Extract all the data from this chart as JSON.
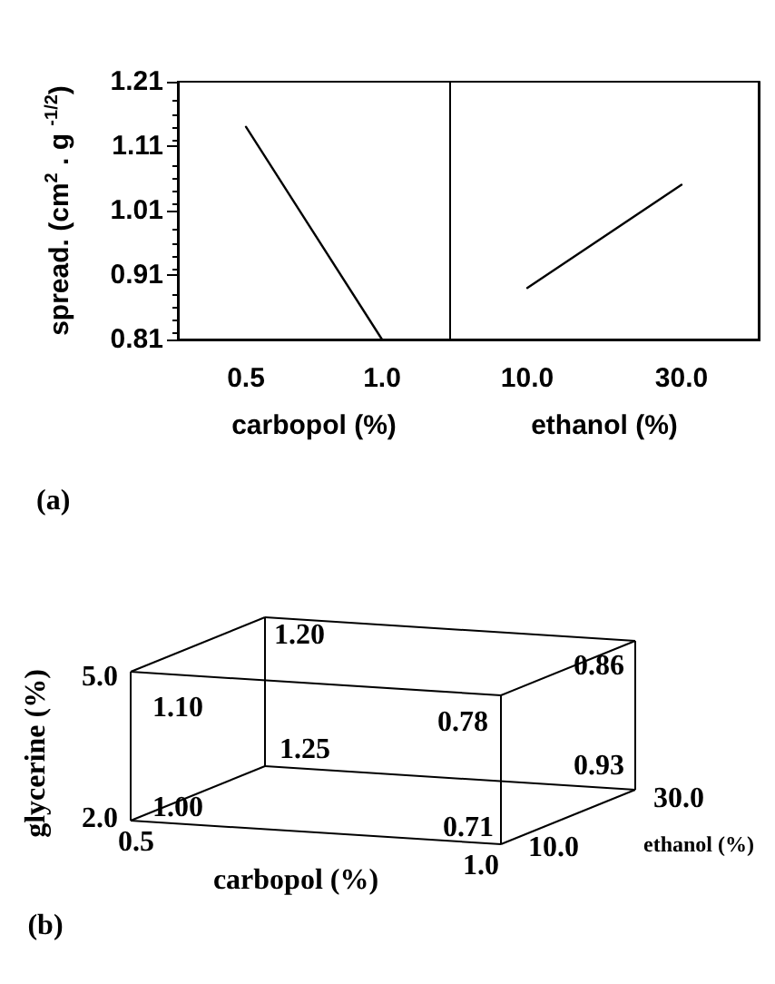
{
  "chart_data": [
    {
      "type": "line",
      "categories": [
        "0.5",
        "1.0"
      ],
      "xlabel": "carbopol (%)",
      "ylabel": "spread. (cm$^{2}$ . g $^{-1/2}$)",
      "ylim": [
        0.81,
        1.21
      ],
      "yticks": [
        0.81,
        0.91,
        1.01,
        1.11,
        1.21
      ],
      "grid": false,
      "marker": "none",
      "series": [
        {
          "color": "#000000",
          "values": [
            1.14,
            0.81
          ]
        }
      ],
      "annotations": [
        "(a)"
      ]
    },
    {
      "type": "line",
      "categories": [
        "10.0",
        "30.0"
      ],
      "xlabel": "ethanol (%)",
      "ylim": [
        0.81,
        1.21
      ],
      "yticks": [
        0.81,
        0.91,
        1.01,
        1.11,
        1.21
      ],
      "tick_labels": "x",
      "grid": false,
      "marker": "none",
      "series": [
        {
          "color": "#000000",
          "values": [
            0.89,
            1.05
          ]
        }
      ]
    },
    {
      "type": "other",
      "annotations": [
        "1.20",
        "0.86",
        "1.10",
        "0.78",
        "1.25",
        "0.93",
        "1.00",
        "0.71",
        "5.0",
        "2.0",
        "0.5",
        "1.0",
        "10.0",
        "30.0",
        "carbopol (%)",
        "ethanol (%)",
        "glycerine (%)",
        "(b)"
      ]
    }
  ]
}
